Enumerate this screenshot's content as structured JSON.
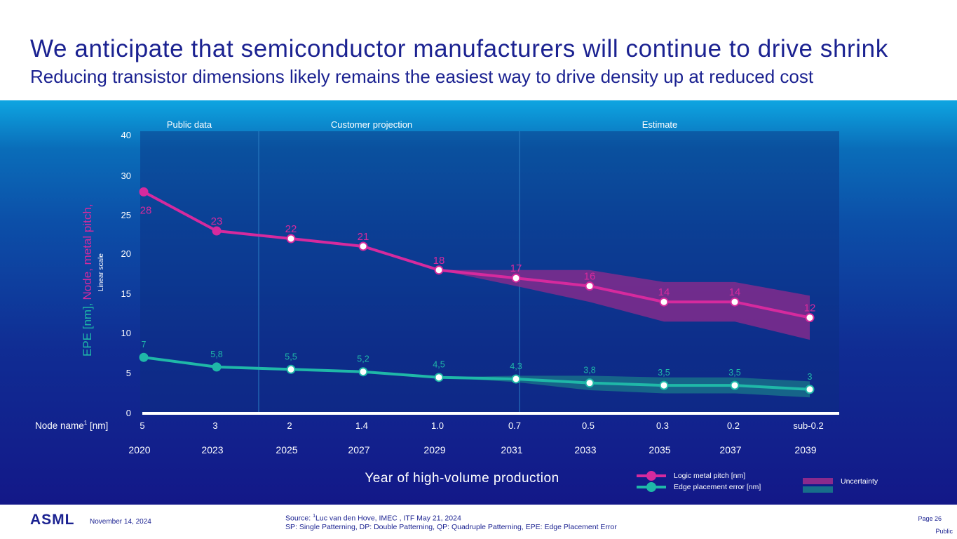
{
  "header": {
    "title": "We anticipate that semiconductor manufacturers will continue to drive shrink",
    "subtitle": "Reducing transistor dimensions likely remains the easiest way to drive density up at reduced cost"
  },
  "colors": {
    "logic": "#d62a9e",
    "epe": "#1fb8a8",
    "uncertainty_logic": "#8a2a8c",
    "uncertainty_epe": "#176e8a"
  },
  "chart_data": {
    "type": "line",
    "phases": [
      "Public data",
      "Customer projection",
      "Estimate"
    ],
    "y_axis_ticks": [
      "40",
      "30",
      "25",
      "20",
      "15",
      "10",
      "5",
      "0"
    ],
    "ylabel_epe": "EPE [nm],",
    "ylabel_node": "Node, metal pitch,",
    "ylabel_scale": "Linear scale",
    "node_row_label": "Node name",
    "node_row_sup": "1",
    "node_row_unit": " [nm]",
    "node_names": [
      "5",
      "3",
      "2",
      "1.4",
      "1.0",
      "0.7",
      "0.5",
      "0.3",
      "0.2",
      "sub-0.2"
    ],
    "years": [
      "2020",
      "2023",
      "2025",
      "2027",
      "2029",
      "2031",
      "2033",
      "2035",
      "2037",
      "2039"
    ],
    "xlabel": "Year of high-volume production",
    "series": [
      {
        "name": "Logic metal pitch [nm]",
        "values": [
          28,
          23,
          22,
          21,
          18,
          17,
          16,
          14,
          14,
          12
        ],
        "labels": [
          "28",
          "23",
          "22",
          "21",
          "18",
          "17",
          "16",
          "14",
          "14",
          "12"
        ]
      },
      {
        "name": "Edge placement error [nm]",
        "values": [
          7,
          5.8,
          5.5,
          5.2,
          4.5,
          4.3,
          3.8,
          3.5,
          3.5,
          3
        ],
        "labels": [
          "7",
          "5,8",
          "5,5",
          "5,2",
          "4,5",
          "4,3",
          "3,8",
          "3,5",
          "3,5",
          "3"
        ]
      }
    ],
    "legend_uncertainty": "Uncertainty"
  },
  "footer": {
    "logo": "ASML",
    "date": "November 14, 2024",
    "source_prefix": "Source: ",
    "source_sup": "1",
    "source_text": "Luc van den Hove, IMEC , ITF May 21, 2024",
    "abbreviations": "SP: Single Patterning, DP: Double Patterning, QP: Quadruple Patterning, EPE: Edge Placement Error",
    "page": "Page 26",
    "classification": "Public"
  }
}
